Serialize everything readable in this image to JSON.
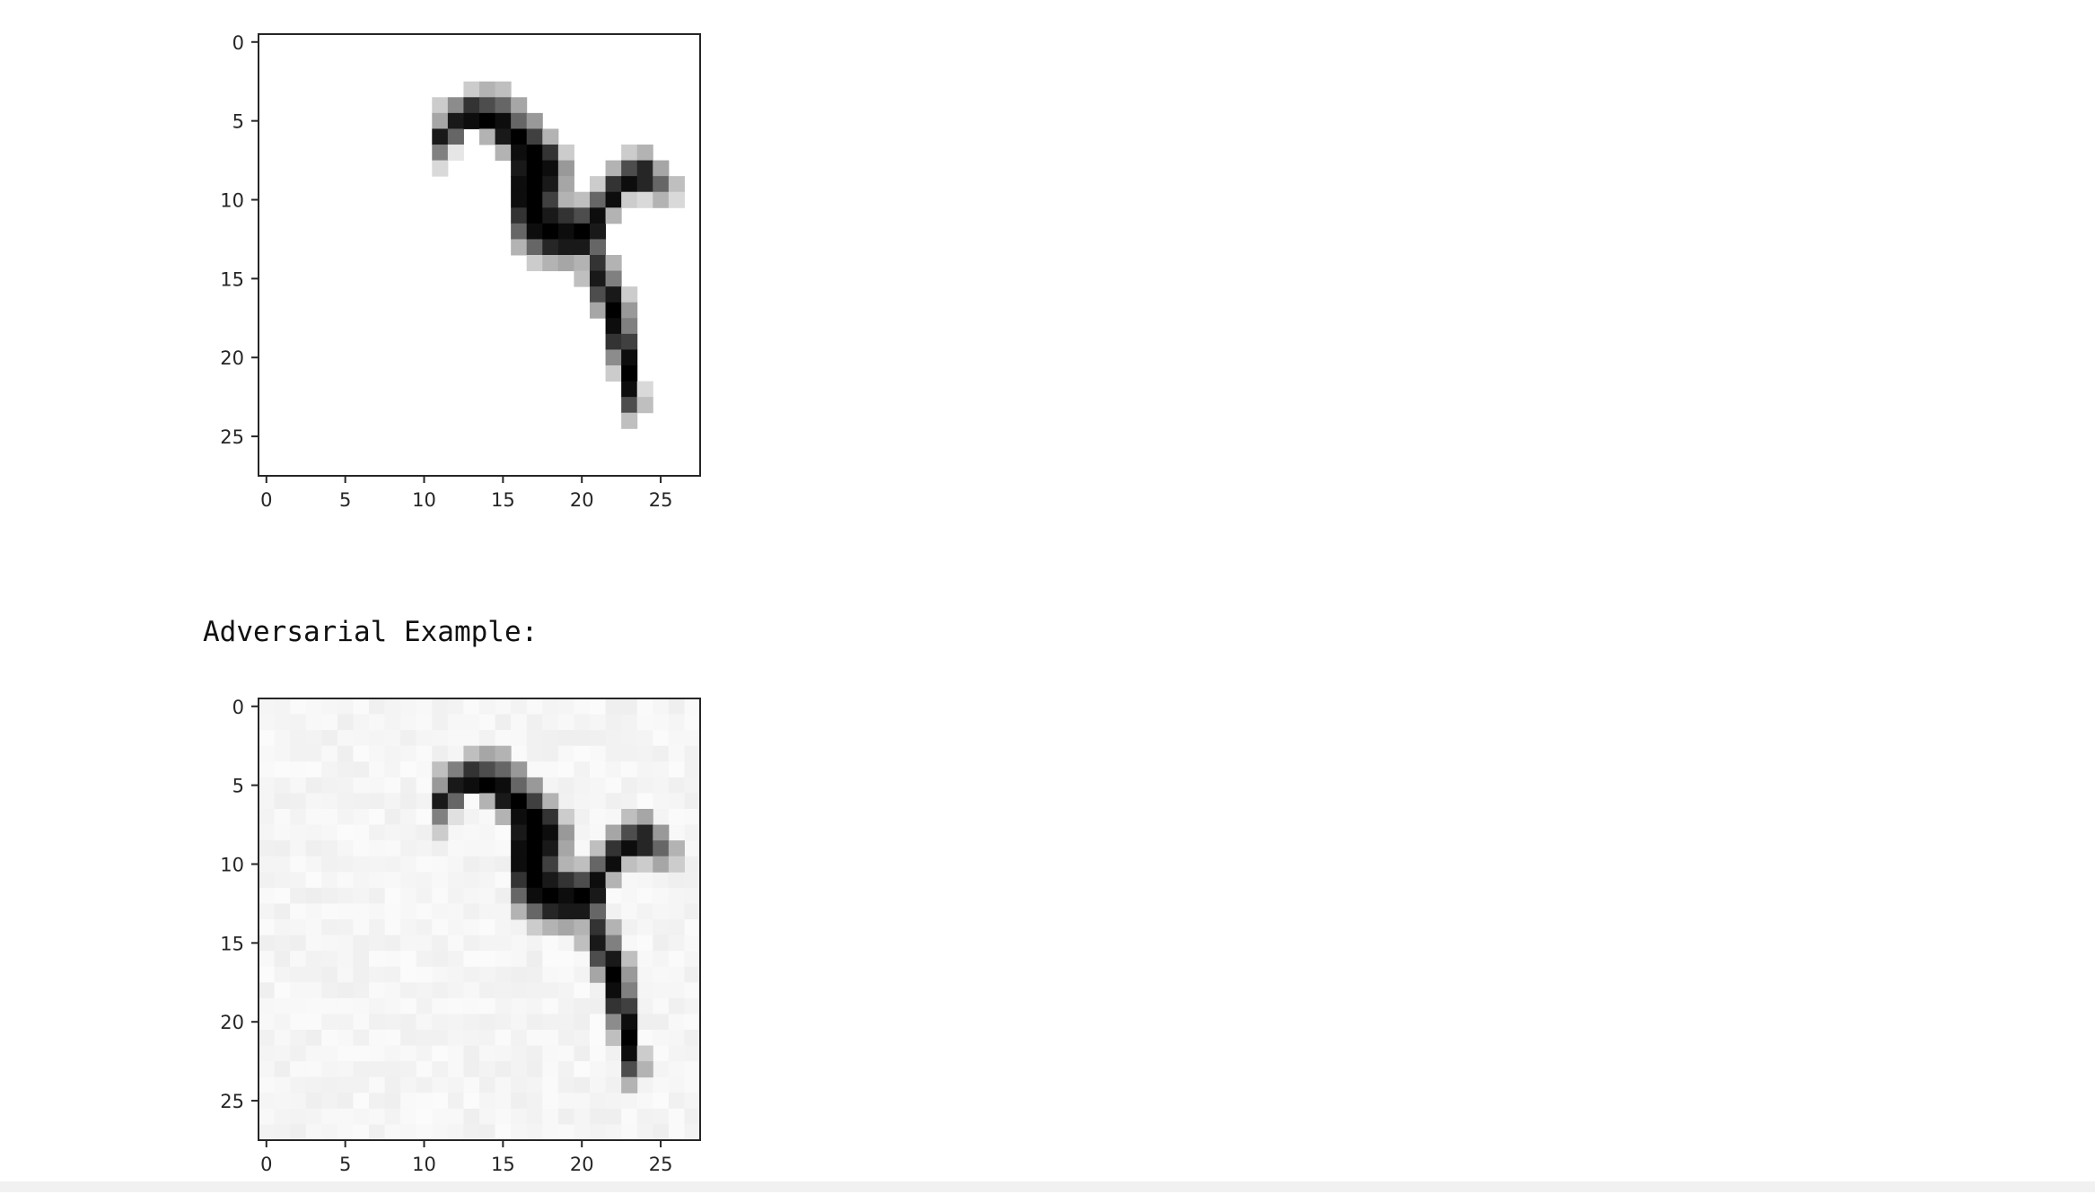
{
  "output": {
    "caption": "Adversarial Example:"
  },
  "chart_data": [
    {
      "type": "heatmap",
      "title": "",
      "xlabel": "",
      "ylabel": "",
      "image_size": [
        28,
        28
      ],
      "xlim": [
        -0.5,
        27.5
      ],
      "ylim": [
        27.5,
        -0.5
      ],
      "x_ticks": [
        0,
        5,
        10,
        15,
        20,
        25
      ],
      "y_ticks": [
        0,
        5,
        10,
        15,
        20,
        25
      ],
      "tick_labels": [
        "0",
        "5",
        "10",
        "15",
        "20",
        "25"
      ],
      "colormap": "gray_r",
      "grid": false,
      "background_level": 0,
      "pixels": [
        [
          4,
          11,
          0.2
        ],
        [
          5,
          11,
          0.35
        ],
        [
          6,
          11,
          0.9
        ],
        [
          7,
          11,
          0.5
        ],
        [
          8,
          11,
          0.15
        ],
        [
          4,
          12,
          0.45
        ],
        [
          5,
          12,
          0.9
        ],
        [
          6,
          12,
          0.6
        ],
        [
          7,
          12,
          0.1
        ],
        [
          3,
          13,
          0.2
        ],
        [
          4,
          13,
          0.8
        ],
        [
          5,
          13,
          0.95
        ],
        [
          3,
          14,
          0.3
        ],
        [
          4,
          14,
          0.7
        ],
        [
          5,
          14,
          1.0
        ],
        [
          6,
          14,
          0.3
        ],
        [
          3,
          15,
          0.25
        ],
        [
          4,
          15,
          0.6
        ],
        [
          5,
          15,
          0.95
        ],
        [
          6,
          15,
          0.9
        ],
        [
          7,
          15,
          0.3
        ],
        [
          4,
          16,
          0.35
        ],
        [
          5,
          16,
          0.6
        ],
        [
          6,
          16,
          1.0
        ],
        [
          7,
          16,
          0.95
        ],
        [
          8,
          16,
          0.9
        ],
        [
          9,
          16,
          0.95
        ],
        [
          10,
          16,
          0.95
        ],
        [
          11,
          16,
          0.8
        ],
        [
          12,
          16,
          0.6
        ],
        [
          13,
          16,
          0.3
        ],
        [
          5,
          17,
          0.4
        ],
        [
          6,
          17,
          0.75
        ],
        [
          7,
          17,
          1.0
        ],
        [
          8,
          17,
          1.0
        ],
        [
          9,
          17,
          1.0
        ],
        [
          10,
          17,
          1.0
        ],
        [
          11,
          17,
          1.0
        ],
        [
          12,
          17,
          0.95
        ],
        [
          13,
          17,
          0.6
        ],
        [
          14,
          17,
          0.2
        ],
        [
          6,
          18,
          0.3
        ],
        [
          7,
          18,
          0.8
        ],
        [
          8,
          18,
          0.95
        ],
        [
          9,
          18,
          0.9
        ],
        [
          10,
          18,
          0.75
        ],
        [
          11,
          18,
          0.9
        ],
        [
          12,
          18,
          1.0
        ],
        [
          13,
          18,
          0.85
        ],
        [
          14,
          18,
          0.3
        ],
        [
          7,
          19,
          0.2
        ],
        [
          8,
          19,
          0.4
        ],
        [
          9,
          19,
          0.35
        ],
        [
          10,
          19,
          0.3
        ],
        [
          11,
          19,
          0.8
        ],
        [
          12,
          19,
          0.95
        ],
        [
          13,
          19,
          0.9
        ],
        [
          14,
          19,
          0.35
        ],
        [
          10,
          20,
          0.25
        ],
        [
          11,
          20,
          0.7
        ],
        [
          12,
          20,
          1.0
        ],
        [
          13,
          20,
          0.9
        ],
        [
          14,
          20,
          0.3
        ],
        [
          15,
          20,
          0.25
        ],
        [
          9,
          21,
          0.2
        ],
        [
          10,
          21,
          0.6
        ],
        [
          11,
          21,
          0.95
        ],
        [
          12,
          21,
          0.9
        ],
        [
          13,
          21,
          0.6
        ],
        [
          14,
          21,
          0.8
        ],
        [
          15,
          21,
          0.9
        ],
        [
          16,
          21,
          0.7
        ],
        [
          17,
          21,
          0.35
        ],
        [
          8,
          22,
          0.3
        ],
        [
          9,
          22,
          0.8
        ],
        [
          10,
          22,
          0.95
        ],
        [
          11,
          22,
          0.3
        ],
        [
          14,
          22,
          0.3
        ],
        [
          15,
          22,
          0.5
        ],
        [
          16,
          22,
          0.9
        ],
        [
          17,
          22,
          1.0
        ],
        [
          18,
          22,
          0.95
        ],
        [
          19,
          22,
          0.8
        ],
        [
          20,
          22,
          0.45
        ],
        [
          21,
          22,
          0.2
        ],
        [
          7,
          23,
          0.2
        ],
        [
          8,
          23,
          0.7
        ],
        [
          9,
          23,
          0.95
        ],
        [
          10,
          23,
          0.2
        ],
        [
          16,
          23,
          0.2
        ],
        [
          17,
          23,
          0.4
        ],
        [
          18,
          23,
          0.5
        ],
        [
          19,
          23,
          0.75
        ],
        [
          20,
          23,
          0.95
        ],
        [
          21,
          23,
          1.0
        ],
        [
          22,
          23,
          0.95
        ],
        [
          23,
          23,
          0.7
        ],
        [
          24,
          23,
          0.25
        ],
        [
          7,
          24,
          0.3
        ],
        [
          8,
          24,
          0.85
        ],
        [
          9,
          24,
          0.85
        ],
        [
          10,
          24,
          0.15
        ],
        [
          22,
          24,
          0.15
        ],
        [
          23,
          24,
          0.25
        ],
        [
          8,
          25,
          0.35
        ],
        [
          9,
          25,
          0.6
        ],
        [
          10,
          25,
          0.3
        ],
        [
          9,
          26,
          0.25
        ],
        [
          10,
          26,
          0.15
        ]
      ]
    },
    {
      "type": "heatmap",
      "title": "",
      "xlabel": "",
      "ylabel": "",
      "image_size": [
        28,
        28
      ],
      "xlim": [
        -0.5,
        27.5
      ],
      "ylim": [
        27.5,
        -0.5
      ],
      "x_ticks": [
        0,
        5,
        10,
        15,
        20,
        25
      ],
      "y_ticks": [
        0,
        5,
        10,
        15,
        20,
        25
      ],
      "tick_labels": [
        "0",
        "5",
        "10",
        "15",
        "20",
        "25"
      ],
      "colormap": "gray_r",
      "grid": false,
      "background_level": 0.04,
      "pixels": [
        [
          4,
          11,
          0.25
        ],
        [
          5,
          11,
          0.4
        ],
        [
          6,
          11,
          0.9
        ],
        [
          7,
          11,
          0.5
        ],
        [
          8,
          11,
          0.2
        ],
        [
          4,
          12,
          0.5
        ],
        [
          5,
          12,
          0.9
        ],
        [
          6,
          12,
          0.6
        ],
        [
          7,
          12,
          0.12
        ],
        [
          3,
          13,
          0.25
        ],
        [
          4,
          13,
          0.8
        ],
        [
          5,
          13,
          0.95
        ],
        [
          3,
          14,
          0.35
        ],
        [
          4,
          14,
          0.7
        ],
        [
          5,
          14,
          1.0
        ],
        [
          6,
          14,
          0.3
        ],
        [
          3,
          15,
          0.3
        ],
        [
          4,
          15,
          0.6
        ],
        [
          5,
          15,
          0.95
        ],
        [
          6,
          15,
          0.9
        ],
        [
          7,
          15,
          0.3
        ],
        [
          4,
          16,
          0.4
        ],
        [
          5,
          16,
          0.6
        ],
        [
          6,
          16,
          1.0
        ],
        [
          7,
          16,
          0.95
        ],
        [
          8,
          16,
          0.9
        ],
        [
          9,
          16,
          0.95
        ],
        [
          10,
          16,
          0.95
        ],
        [
          11,
          16,
          0.8
        ],
        [
          12,
          16,
          0.6
        ],
        [
          13,
          16,
          0.3
        ],
        [
          5,
          17,
          0.4
        ],
        [
          6,
          17,
          0.75
        ],
        [
          7,
          17,
          1.0
        ],
        [
          8,
          17,
          1.0
        ],
        [
          9,
          17,
          1.0
        ],
        [
          10,
          17,
          1.0
        ],
        [
          11,
          17,
          1.0
        ],
        [
          12,
          17,
          0.95
        ],
        [
          13,
          17,
          0.6
        ],
        [
          14,
          17,
          0.2
        ],
        [
          6,
          18,
          0.3
        ],
        [
          7,
          18,
          0.8
        ],
        [
          8,
          18,
          0.95
        ],
        [
          9,
          18,
          0.9
        ],
        [
          10,
          18,
          0.75
        ],
        [
          11,
          18,
          0.9
        ],
        [
          12,
          18,
          1.0
        ],
        [
          13,
          18,
          0.85
        ],
        [
          14,
          18,
          0.3
        ],
        [
          7,
          19,
          0.2
        ],
        [
          8,
          19,
          0.4
        ],
        [
          9,
          19,
          0.35
        ],
        [
          10,
          19,
          0.3
        ],
        [
          11,
          19,
          0.8
        ],
        [
          12,
          19,
          0.95
        ],
        [
          13,
          19,
          0.9
        ],
        [
          14,
          19,
          0.35
        ],
        [
          10,
          20,
          0.25
        ],
        [
          11,
          20,
          0.7
        ],
        [
          12,
          20,
          1.0
        ],
        [
          13,
          20,
          0.9
        ],
        [
          14,
          20,
          0.3
        ],
        [
          15,
          20,
          0.25
        ],
        [
          9,
          21,
          0.25
        ],
        [
          10,
          21,
          0.6
        ],
        [
          11,
          21,
          0.95
        ],
        [
          12,
          21,
          0.9
        ],
        [
          13,
          21,
          0.6
        ],
        [
          14,
          21,
          0.8
        ],
        [
          15,
          21,
          0.9
        ],
        [
          16,
          21,
          0.7
        ],
        [
          17,
          21,
          0.35
        ],
        [
          8,
          22,
          0.35
        ],
        [
          9,
          22,
          0.8
        ],
        [
          10,
          22,
          0.95
        ],
        [
          11,
          22,
          0.3
        ],
        [
          14,
          22,
          0.3
        ],
        [
          15,
          22,
          0.5
        ],
        [
          16,
          22,
          0.9
        ],
        [
          17,
          22,
          1.0
        ],
        [
          18,
          22,
          0.95
        ],
        [
          19,
          22,
          0.8
        ],
        [
          20,
          22,
          0.45
        ],
        [
          21,
          22,
          0.25
        ],
        [
          7,
          23,
          0.25
        ],
        [
          8,
          23,
          0.7
        ],
        [
          9,
          23,
          0.95
        ],
        [
          10,
          23,
          0.25
        ],
        [
          16,
          23,
          0.25
        ],
        [
          17,
          23,
          0.4
        ],
        [
          18,
          23,
          0.5
        ],
        [
          19,
          23,
          0.75
        ],
        [
          20,
          23,
          0.95
        ],
        [
          21,
          23,
          1.0
        ],
        [
          22,
          23,
          0.95
        ],
        [
          23,
          23,
          0.7
        ],
        [
          24,
          23,
          0.3
        ],
        [
          7,
          24,
          0.35
        ],
        [
          8,
          24,
          0.85
        ],
        [
          9,
          24,
          0.85
        ],
        [
          10,
          24,
          0.2
        ],
        [
          22,
          24,
          0.2
        ],
        [
          23,
          24,
          0.3
        ],
        [
          8,
          25,
          0.4
        ],
        [
          9,
          25,
          0.6
        ],
        [
          10,
          25,
          0.35
        ],
        [
          9,
          26,
          0.3
        ],
        [
          10,
          26,
          0.2
        ]
      ]
    }
  ]
}
